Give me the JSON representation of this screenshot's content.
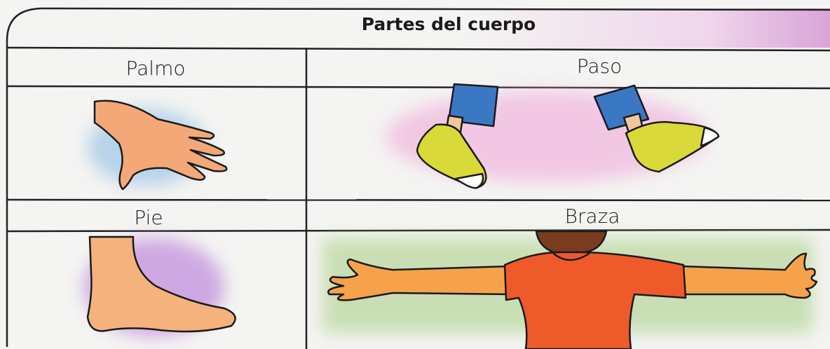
{
  "title": "Partes del cuerpo",
  "table": {
    "rows": [
      [
        "Palmo",
        "Paso"
      ],
      [
        "Pie",
        "Braza"
      ]
    ]
  }
}
